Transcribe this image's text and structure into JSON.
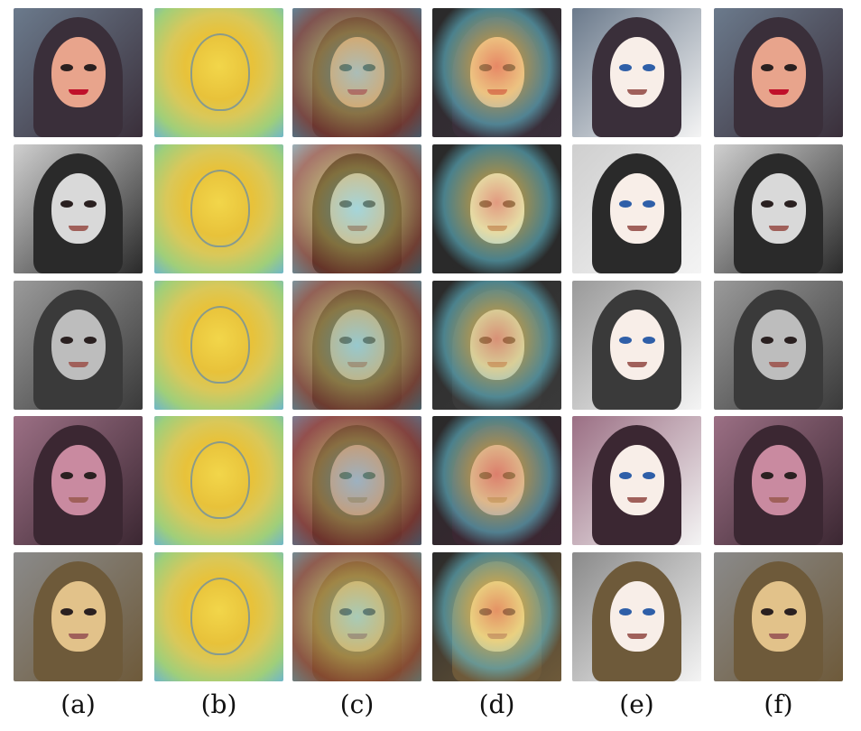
{
  "columns": [
    {
      "label": "(a)",
      "kind": "photo"
    },
    {
      "label": "(b)",
      "kind": "saliency-map"
    },
    {
      "label": "(c)",
      "kind": "heatmap-overlay"
    },
    {
      "label": "(d)",
      "kind": "attention-overlay"
    },
    {
      "label": "(e)",
      "kind": "anime-output"
    },
    {
      "label": "(f)",
      "kind": "stylized-output"
    }
  ],
  "rows": [
    {
      "subject": "woman-hat-red-lips",
      "colors": [
        "#3a2f3a",
        "#e8a48c",
        "#c0102a",
        "#6b7a8c"
      ]
    },
    {
      "subject": "woman-grayscale",
      "colors": [
        "#2a2a2a",
        "#d9d9d9",
        "#8a8a8a",
        "#cfcfcf"
      ]
    },
    {
      "subject": "woman-grayscale-side",
      "colors": [
        "#3a3a3a",
        "#bdbdbd",
        "#7a7a7a",
        "#9a9a9a"
      ]
    },
    {
      "subject": "woman-phone-selfie",
      "colors": [
        "#3b2732",
        "#c98aa0",
        "#5e3d52",
        "#9b6f84"
      ]
    },
    {
      "subject": "woman-cap-blonde",
      "colors": [
        "#6e5a3a",
        "#e2c28a",
        "#b89a60",
        "#8a8a8a"
      ]
    }
  ]
}
